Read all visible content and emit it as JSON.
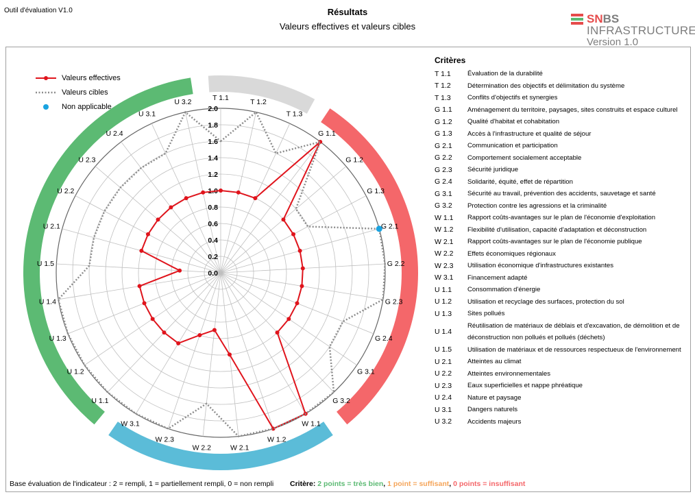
{
  "header": {
    "tool_label": "Outil d'évaluation V1.0",
    "title": "Résultats",
    "subtitle": "Valeurs effectives et valeurs cibles"
  },
  "logo": {
    "brand_prefix": "SN",
    "brand_suffix": "BS",
    "product": "INFRASTRUCTURE",
    "version": "Version 1.0"
  },
  "legend": {
    "effective": "Valeurs effectives",
    "target": "Valeurs cibles",
    "na": "Non applicable"
  },
  "colors": {
    "effective": "#e0141c",
    "target": "#8c8c8c",
    "na": "#1aa3e0",
    "sector_T": "#d9d9d9",
    "sector_G": "#f4676a",
    "sector_W": "#5bbcd8",
    "sector_U": "#5cba73",
    "good": "#5cba73",
    "ok": "#f5a55a",
    "bad": "#f4676a"
  },
  "chart_data": {
    "type": "radar",
    "axes": [
      "T 1.1",
      "T 1.2",
      "T 1.3",
      "G 1.1",
      "G 1.2",
      "G 1.3",
      "G 2.1",
      "G 2.2",
      "G 2.3",
      "G 2.4",
      "G 3.1",
      "G 3.2",
      "W 1.1",
      "W 1.2",
      "W 2.1",
      "W 2.2",
      "W 2.3",
      "W 3.1",
      "U 1.1",
      "U 1.2",
      "U 1.3",
      "U 1.4",
      "U 1.5",
      "U 2.1",
      "U 2.2",
      "U 2.3",
      "U 2.4",
      "U 3.1",
      "U 3.2"
    ],
    "rlim": [
      0,
      2
    ],
    "rticks": [
      "0.0",
      "0.2",
      "0.4",
      "0.6",
      "0.8",
      "1.0",
      "1.2",
      "1.4",
      "1.6",
      "1.8",
      "2.0"
    ],
    "series": [
      {
        "name": "Valeurs effectives",
        "values": [
          1.0,
          1.0,
          1.0,
          2.0,
          1.0,
          1.0,
          1.0,
          1.0,
          1.0,
          1.0,
          1.0,
          1.0,
          2.0,
          2.0,
          1.0,
          0.7,
          0.8,
          1.0,
          1.0,
          1.0,
          1.0,
          1.0,
          0.5,
          1.0,
          1.0,
          1.0,
          1.0,
          1.0,
          1.0
        ]
      },
      {
        "name": "Valeurs cibles",
        "values": [
          1.6,
          2.0,
          1.6,
          2.0,
          1.2,
          1.2,
          2.0,
          2.0,
          2.0,
          1.6,
          1.6,
          2.0,
          2.0,
          2.0,
          2.0,
          1.6,
          2.0,
          2.0,
          2.0,
          2.0,
          2.0,
          2.0,
          1.6,
          1.6,
          1.6,
          1.6,
          1.6,
          1.6,
          2.0
        ]
      }
    ],
    "not_applicable": [
      "G 2.1"
    ],
    "sectors": [
      {
        "key": "T",
        "from": 0,
        "to": 2
      },
      {
        "key": "G",
        "from": 3,
        "to": 11
      },
      {
        "key": "W",
        "from": 12,
        "to": 17
      },
      {
        "key": "U",
        "from": 18,
        "to": 28
      }
    ]
  },
  "criteria": {
    "heading": "Critères",
    "items": [
      {
        "code": "T 1.1",
        "label": "Évaluation de la durabilité"
      },
      {
        "code": "T 1.2",
        "label": "Détermination des objectifs et délimitation du système"
      },
      {
        "code": "T 1.3",
        "label": "Conflits d'objectifs et synergies"
      },
      {
        "code": "G 1.1",
        "label": "Aménagement du territoire, paysages, sites construits et espace culturel"
      },
      {
        "code": "G 1.2",
        "label": "Qualité d'habitat et cohabitation"
      },
      {
        "code": "G 1.3",
        "label": "Accès à l'infrastructure et qualité de séjour"
      },
      {
        "code": "G 2.1",
        "label": "Communication et participation"
      },
      {
        "code": "G 2.2",
        "label": "Comportement socialement acceptable"
      },
      {
        "code": "G 2.3",
        "label": "Sécurité juridique"
      },
      {
        "code": "G 2.4",
        "label": "Solidarité, équité, effet de répartition"
      },
      {
        "code": "G 3.1",
        "label": "Sécurité au travail, prévention des accidents, sauvetage et santé"
      },
      {
        "code": "G 3.2",
        "label": "Protection contre les agressions et la criminalité"
      },
      {
        "code": "W 1.1",
        "label": "Rapport coûts-avantages sur le plan de l'économie d'exploitation"
      },
      {
        "code": "W 1.2",
        "label": "Flexibilité d'utilisation, capacité d'adaptation et déconstruction"
      },
      {
        "code": "W 2.1",
        "label": "Rapport coûts-avantages sur le plan de l'économie publique"
      },
      {
        "code": "W 2.2",
        "label": "Effets économiques régionaux"
      },
      {
        "code": "W 2.3",
        "label": "Utilisation économique d'infrastructures existantes"
      },
      {
        "code": "W 3.1",
        "label": "Financement adapté"
      },
      {
        "code": "U 1.1",
        "label": "Consommation d'énergie"
      },
      {
        "code": "U 1.2",
        "label": "Utilisation et recyclage des surfaces, protection du sol"
      },
      {
        "code": "U 1.3",
        "label": "Sites pollués"
      },
      {
        "code": "U 1.4",
        "label": "Réutilisation de matériaux de déblais et d'excavation, de démolition et de déconstruction non pollués et pollués (déchets)"
      },
      {
        "code": "U 1.5",
        "label": "Utilisation de matériaux et de ressources respectueux de l'environnement"
      },
      {
        "code": "U 2.1",
        "label": "Atteintes au climat"
      },
      {
        "code": "U 2.2",
        "label": "Atteintes environnementales"
      },
      {
        "code": "U 2.3",
        "label": "Eaux superficielles et nappe phréatique"
      },
      {
        "code": "U 2.4",
        "label": "Nature et paysage"
      },
      {
        "code": "U 3.1",
        "label": "Dangers naturels"
      },
      {
        "code": "U 3.2",
        "label": "Accidents majeurs"
      }
    ]
  },
  "footer": {
    "basis": "Base évaluation de l'indicateur : 2 = rempli, 1 = partiellement rempli, 0 = non rempli",
    "criterion_label": "Critère: ",
    "good": "2 points = très bien",
    "ok": "1 point = suffisant",
    "bad": "0 points = insuffisant"
  }
}
